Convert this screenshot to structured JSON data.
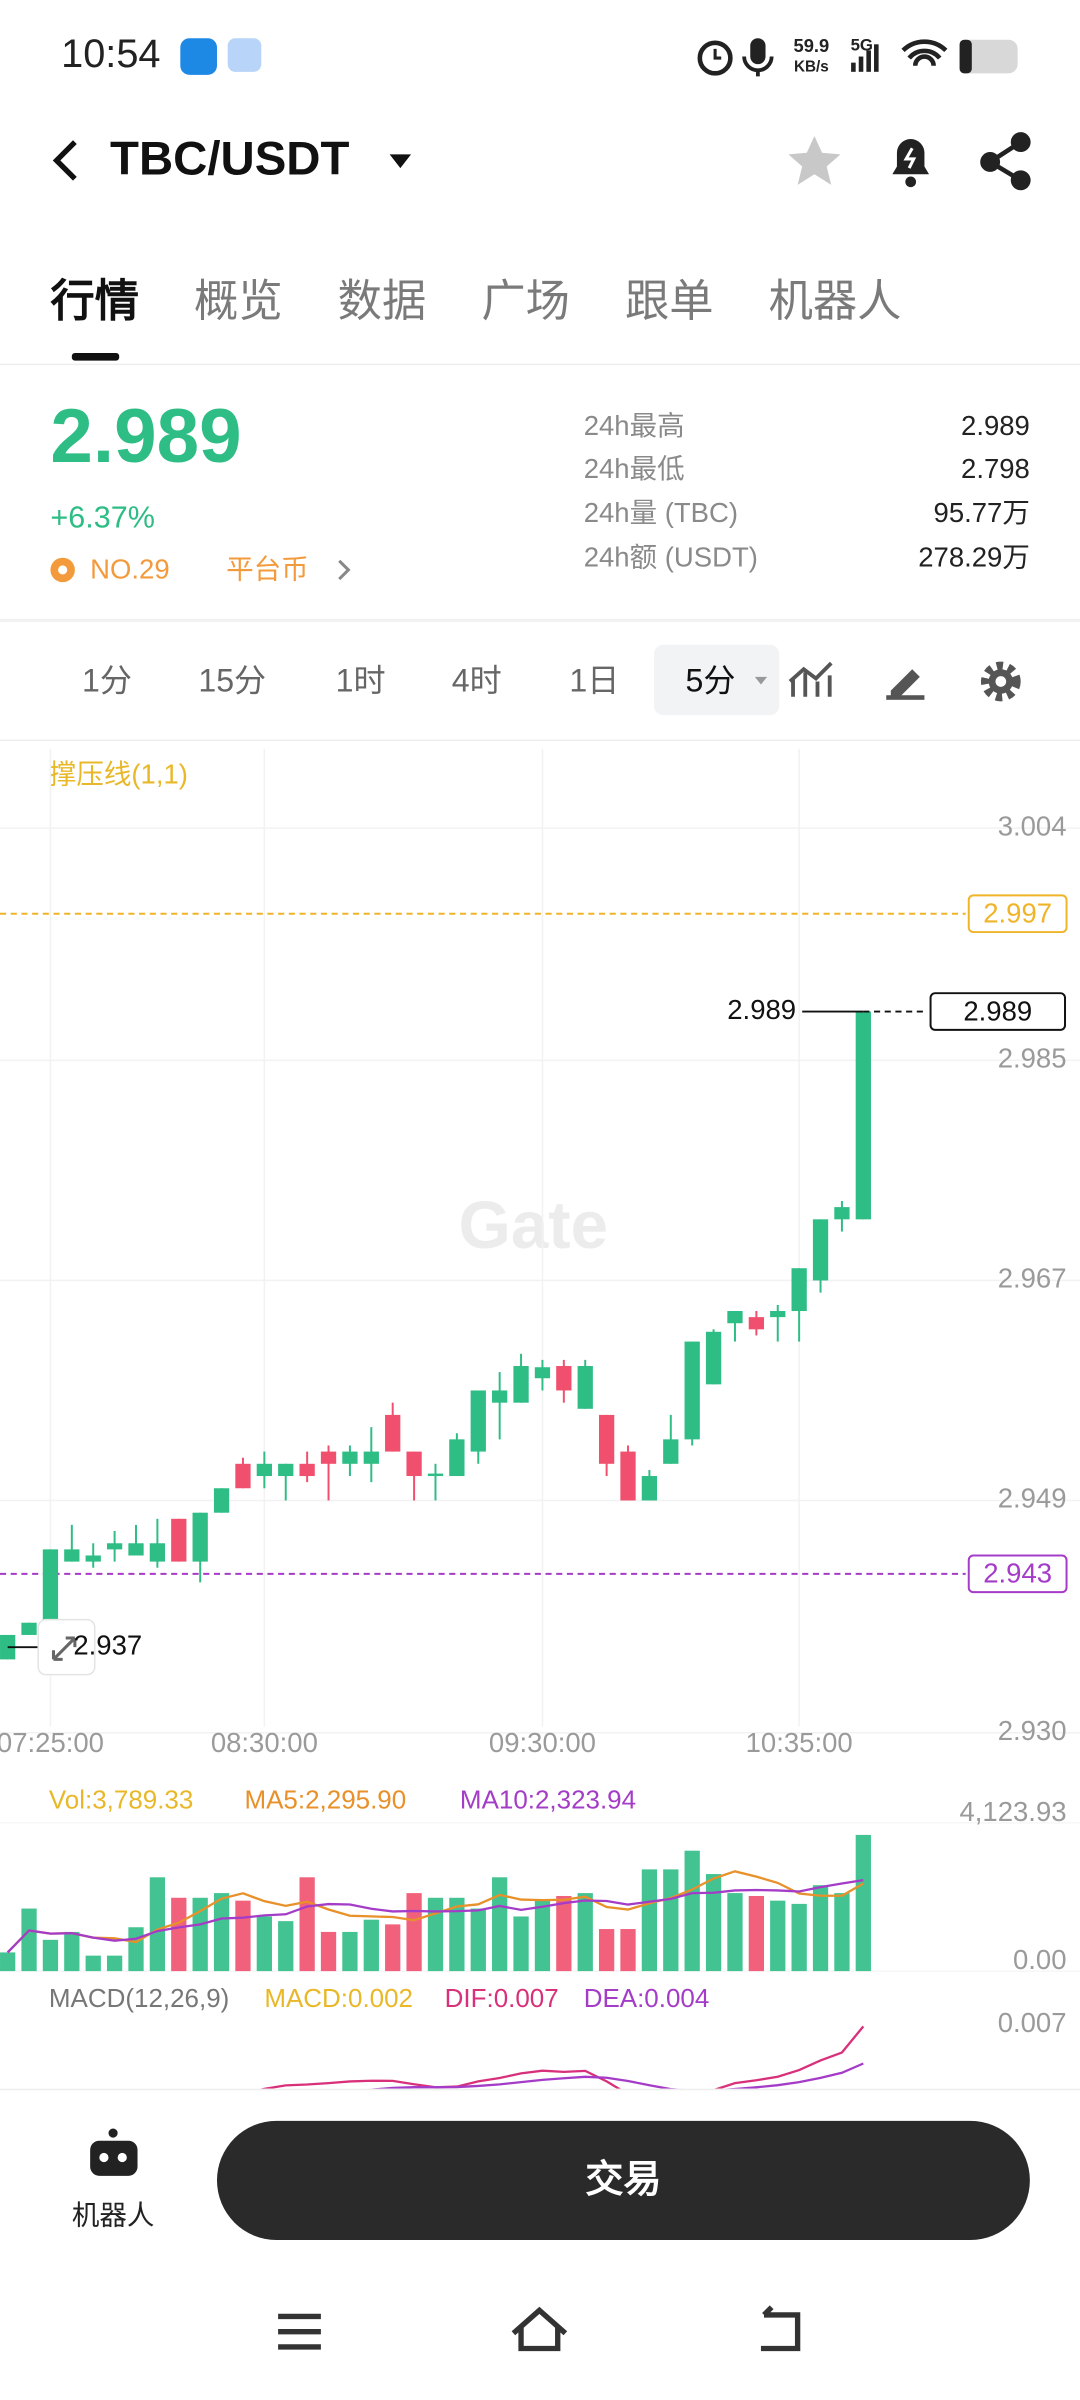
{
  "status_bar": {
    "time": "10:54",
    "speed": "59.9",
    "speed_unit": "KB/s",
    "network": "5G"
  },
  "header": {
    "pair": "TBC/USDT"
  },
  "tabs": [
    "行情",
    "概览",
    "数据",
    "广场",
    "跟单",
    "机器人"
  ],
  "ticker": {
    "price": "2.989",
    "change": "+6.37%",
    "rank": "NO.29",
    "tag": "平台币",
    "stats": [
      {
        "label": "24h最高",
        "value": "2.989"
      },
      {
        "label": "24h最低",
        "value": "2.798"
      },
      {
        "label": "24h量 (TBC)",
        "value": "95.77万"
      },
      {
        "label": "24h额 (USDT)",
        "value": "278.29万"
      }
    ]
  },
  "intervals": [
    "1分",
    "15分",
    "1时",
    "4时",
    "1日",
    "5分"
  ],
  "chart_data": {
    "type": "candlestick",
    "indicator": "撑压线(1,1)",
    "watermark": "Gate",
    "up_color": "#2ebd85",
    "down_color": "#f0506e",
    "categories": [
      null,
      null,
      "07:25:00",
      null,
      null,
      null,
      null,
      null,
      null,
      null,
      null,
      null,
      "08:30:00",
      null,
      null,
      null,
      null,
      null,
      null,
      null,
      null,
      null,
      null,
      null,
      null,
      "09:30:00",
      null,
      null,
      null,
      null,
      null,
      null,
      null,
      null,
      null,
      null,
      null,
      "10:35:00",
      null,
      null,
      null
    ],
    "open": [
      2.936,
      2.938,
      2.939,
      2.944,
      2.944,
      2.945,
      2.9445,
      2.944,
      2.9475,
      2.944,
      2.948,
      2.952,
      2.951,
      2.951,
      2.952,
      2.953,
      2.952,
      2.952,
      2.956,
      2.953,
      2.951,
      2.951,
      2.953,
      2.957,
      2.957,
      2.959,
      2.96,
      2.9565,
      2.956,
      2.953,
      2.949,
      2.952,
      2.954,
      2.9585,
      2.9635,
      2.964,
      2.964,
      2.9645,
      2.967,
      2.972,
      2.972
    ],
    "high": [
      2.938,
      2.939,
      2.945,
      2.947,
      2.9455,
      2.9465,
      2.947,
      2.9475,
      2.9475,
      2.948,
      2.95,
      2.9525,
      2.953,
      2.952,
      2.953,
      2.9535,
      2.9535,
      2.955,
      2.957,
      2.953,
      2.952,
      2.9545,
      2.958,
      2.9595,
      2.961,
      2.9605,
      2.9605,
      2.9605,
      2.956,
      2.9535,
      2.9515,
      2.956,
      2.962,
      2.963,
      2.9645,
      2.9645,
      2.965,
      2.968,
      2.972,
      2.9735,
      2.989
    ],
    "low": [
      2.936,
      2.938,
      2.938,
      2.944,
      2.9435,
      2.944,
      2.9445,
      2.9435,
      2.944,
      2.9423,
      2.948,
      2.95,
      2.95,
      2.949,
      2.9505,
      2.949,
      2.951,
      2.9505,
      2.953,
      2.949,
      2.949,
      2.951,
      2.952,
      2.954,
      2.957,
      2.958,
      2.957,
      2.9565,
      2.951,
      2.949,
      2.949,
      2.952,
      2.9535,
      2.9585,
      2.962,
      2.9625,
      2.962,
      2.962,
      2.966,
      2.971,
      2.972
    ],
    "close": [
      2.938,
      2.939,
      2.945,
      2.945,
      2.9445,
      2.9455,
      2.9455,
      2.9455,
      2.944,
      2.948,
      2.95,
      2.95,
      2.952,
      2.952,
      2.951,
      2.952,
      2.953,
      2.953,
      2.953,
      2.951,
      2.9512,
      2.954,
      2.958,
      2.958,
      2.96,
      2.9599,
      2.958,
      2.96,
      2.952,
      2.949,
      2.951,
      2.954,
      2.962,
      2.9628,
      2.9645,
      2.963,
      2.9645,
      2.968,
      2.972,
      2.973,
      2.989
    ],
    "ylim": [
      2.9305,
      3.0105
    ],
    "yticks": [
      3.004,
      2.985,
      2.967,
      2.949,
      {
        "value": 2.93,
        "label": "2.930"
      }
    ],
    "grid": true,
    "resistance": {
      "value": 2.997,
      "color": "#f0b429"
    },
    "support": {
      "value": 2.943,
      "color": "#a43cc8"
    },
    "last_price": 2.989,
    "period_low": 2.937,
    "volume": {
      "label": "Vol:3,789.33",
      "color": "#e8b828",
      "ma5": {
        "label": "MA5:2,295.90",
        "color": "#e8902a"
      },
      "ma10": {
        "label": "MA10:2,323.94",
        "color": "#a43cc8"
      },
      "values": [
        520,
        1740,
        870,
        1090,
        430,
        430,
        1220,
        2610,
        2040,
        2040,
        2170,
        1960,
        1520,
        1390,
        2610,
        1090,
        1090,
        1430,
        1300,
        2170,
        2040,
        2040,
        1740,
        2610,
        1520,
        1960,
        2090,
        2170,
        1170,
        1170,
        2830,
        2830,
        3350,
        2700,
        2170,
        2090,
        1960,
        1870,
        2390,
        2170,
        3789.33
      ],
      "ylim": [
        0,
        4123.93
      ],
      "yticks": [
        {
          "value": 4123.93,
          "label": "4,123.93"
        },
        {
          "value": 0,
          "label": "0.00"
        }
      ]
    },
    "macd": {
      "title": "MACD(12,26,9)",
      "macd": {
        "label": "MACD:0.002",
        "color": "#e8b828"
      },
      "dif": {
        "label": "DIF:0.007",
        "color": "#d8307a"
      },
      "dea": {
        "label": "DEA:0.004",
        "color": "#a43cc8"
      },
      "yticks": [
        0.007
      ]
    }
  },
  "bottom": {
    "robot": "机器人",
    "trade": "交易"
  }
}
